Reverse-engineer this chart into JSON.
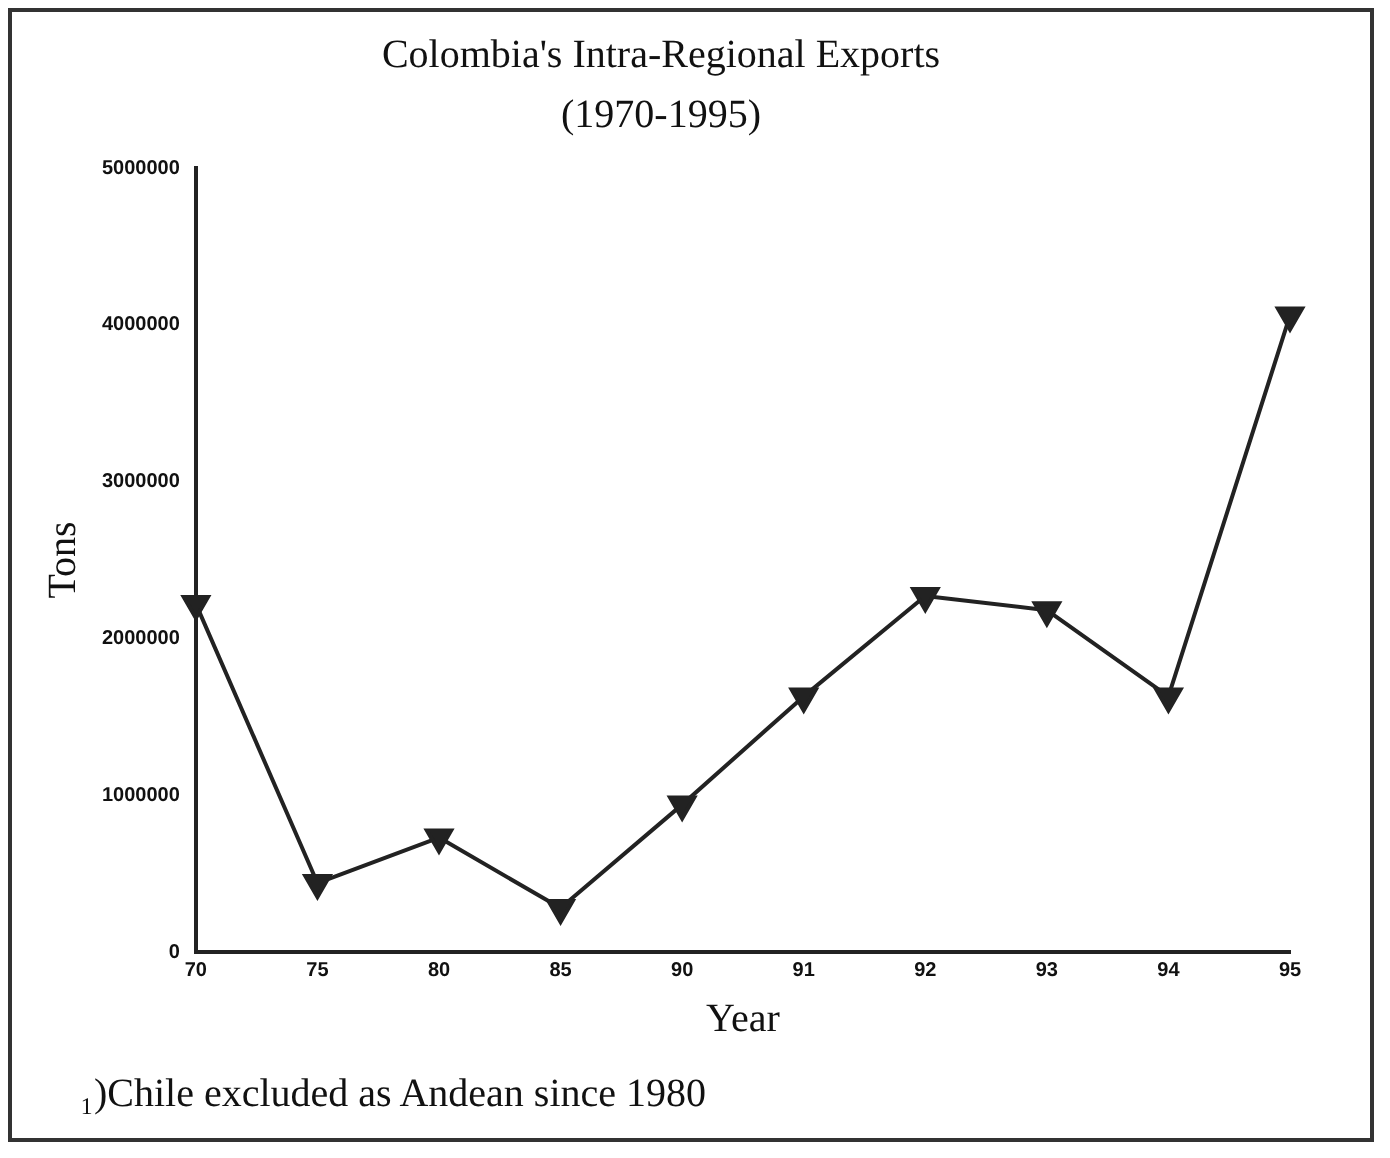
{
  "chart_data": {
    "type": "line",
    "title": "Colombia's Intra-Regional Exports",
    "subtitle": "(1970-1995)",
    "xlabel": "Year",
    "ylabel": "Tons",
    "categories": [
      "70",
      "75",
      "80",
      "85",
      "90",
      "91",
      "92",
      "93",
      "94",
      "95"
    ],
    "series": [
      {
        "color": "#222222",
        "values": [
          2220000,
          440000,
          730000,
          280000,
          940000,
          1630000,
          2270000,
          2180000,
          1630000,
          4060000
        ]
      }
    ],
    "ylim": [
      0,
      5000000
    ],
    "yticks": [
      0,
      1000000,
      2000000,
      3000000,
      4000000,
      5000000
    ],
    "grid": false,
    "legend": false,
    "marker": "triangle",
    "line_style": "solid",
    "annotations": [
      "₁)Chile excluded as Andean since 1980"
    ]
  }
}
